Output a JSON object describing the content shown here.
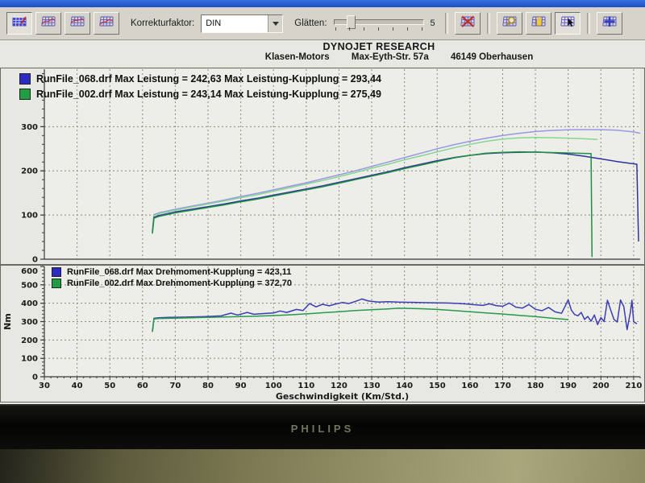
{
  "toolbar": {
    "korrekturfaktor_label": "Korrekturfaktor:",
    "korrekturfaktor_value": "DIN",
    "glaetten_label": "Glätten:",
    "glaetten_value": "5"
  },
  "header": {
    "title": "DYNOJET RESEARCH",
    "company": "Klasen-Motors",
    "street": "Max-Eyth-Str. 57a",
    "city": "46149 Oberhausen"
  },
  "legends": {
    "power": [
      {
        "color": "#2b2bc4",
        "label": "RunFile_068.drf Max Leistung = 242,63 Max Leistung-Kupplung = 293,44"
      },
      {
        "color": "#1f9e44",
        "label": "RunFile_002.drf Max Leistung = 243,14 Max Leistung-Kupplung = 275,49"
      }
    ],
    "torque": [
      {
        "color": "#2b2bc4",
        "label": "RunFile_068.drf Max Drehmoment-Kupplung = 423,11"
      },
      {
        "color": "#1f9e44",
        "label": "RunFile_002.drf Max Drehmoment-Kupplung = 372,70"
      }
    ]
  },
  "monitor": {
    "brand": "PHILIPS"
  },
  "chart_data": [
    {
      "type": "line",
      "name": "Leistung",
      "x_range": [
        30,
        212
      ],
      "y_range": [
        0,
        430
      ],
      "y_ticks": [
        0,
        100,
        200,
        300
      ],
      "y_minor_step": 20,
      "x_grid_step": 10,
      "show_x_labels": false,
      "series": [
        {
          "name": "RunFile_068 Leistung-Kupplung",
          "color": "#9a96e6",
          "points": [
            [
              63,
              64
            ],
            [
              63.5,
              101
            ],
            [
              65,
              105
            ],
            [
              70,
              113
            ],
            [
              75,
              120
            ],
            [
              80,
              127
            ],
            [
              85,
              134
            ],
            [
              90,
              142
            ],
            [
              95,
              149
            ],
            [
              100,
              157
            ],
            [
              105,
              165
            ],
            [
              110,
              173
            ],
            [
              115,
              182
            ],
            [
              120,
              191
            ],
            [
              125,
              200
            ],
            [
              130,
              210
            ],
            [
              135,
              220
            ],
            [
              140,
              230
            ],
            [
              145,
              240
            ],
            [
              150,
              250
            ],
            [
              155,
              259
            ],
            [
              160,
              267
            ],
            [
              165,
              274
            ],
            [
              170,
              280
            ],
            [
              175,
              285
            ],
            [
              180,
              289
            ],
            [
              185,
              291.5
            ],
            [
              190,
              293
            ],
            [
              195,
              293.4
            ],
            [
              200,
              293.2
            ],
            [
              205,
              292
            ],
            [
              210,
              288
            ],
            [
              212,
              285
            ]
          ]
        },
        {
          "name": "RunFile_002 Leistung-Kupplung",
          "color": "#84d694",
          "points": [
            [
              63,
              62
            ],
            [
              63.5,
              99
            ],
            [
              65,
              103
            ],
            [
              70,
              111
            ],
            [
              75,
              118
            ],
            [
              80,
              125
            ],
            [
              85,
              132
            ],
            [
              90,
              139
            ],
            [
              95,
              146
            ],
            [
              100,
              154
            ],
            [
              105,
              162
            ],
            [
              110,
              170
            ],
            [
              115,
              178
            ],
            [
              120,
              187
            ],
            [
              125,
              196
            ],
            [
              130,
              206
            ],
            [
              135,
              215
            ],
            [
              140,
              225
            ],
            [
              145,
              234
            ],
            [
              150,
              243
            ],
            [
              155,
              252
            ],
            [
              160,
              260
            ],
            [
              165,
              267
            ],
            [
              170,
              272
            ],
            [
              175,
              274.5
            ],
            [
              180,
              275.5
            ],
            [
              185,
              275
            ],
            [
              190,
              274
            ],
            [
              195,
              272.5
            ],
            [
              199,
              271
            ]
          ]
        },
        {
          "name": "RunFile_068 Leistung",
          "color": "#31319f",
          "points": [
            [
              63,
              60
            ],
            [
              63.5,
              95
            ],
            [
              65,
              99
            ],
            [
              70,
              107
            ],
            [
              75,
              113
            ],
            [
              80,
              119
            ],
            [
              85,
              125
            ],
            [
              90,
              132
            ],
            [
              95,
              138
            ],
            [
              100,
              145
            ],
            [
              105,
              152
            ],
            [
              110,
              159
            ],
            [
              115,
              166
            ],
            [
              120,
              174
            ],
            [
              125,
              182
            ],
            [
              130,
              190
            ],
            [
              135,
              198
            ],
            [
              140,
              207
            ],
            [
              145,
              215
            ],
            [
              150,
              223
            ],
            [
              155,
              230
            ],
            [
              160,
              235
            ],
            [
              165,
              239
            ],
            [
              170,
              241
            ],
            [
              175,
              242
            ],
            [
              180,
              242.6
            ],
            [
              185,
              241
            ],
            [
              190,
              238
            ],
            [
              195,
              233
            ],
            [
              200,
              227
            ],
            [
              205,
              221
            ],
            [
              210,
              216
            ],
            [
              211,
              215
            ],
            [
              211.5,
              40
            ]
          ]
        },
        {
          "name": "RunFile_002 Leistung",
          "color": "#1f8f45",
          "points": [
            [
              63,
              58
            ],
            [
              63.5,
              93
            ],
            [
              65,
              97
            ],
            [
              70,
              105
            ],
            [
              75,
              111
            ],
            [
              80,
              117
            ],
            [
              85,
              123
            ],
            [
              90,
              130
            ],
            [
              95,
              136
            ],
            [
              100,
              143
            ],
            [
              105,
              150
            ],
            [
              110,
              157
            ],
            [
              115,
              164
            ],
            [
              120,
              172
            ],
            [
              125,
              180
            ],
            [
              130,
              188
            ],
            [
              135,
              196
            ],
            [
              140,
              205
            ],
            [
              145,
              213
            ],
            [
              150,
              221
            ],
            [
              155,
              229
            ],
            [
              160,
              235
            ],
            [
              165,
              240
            ],
            [
              170,
              242
            ],
            [
              175,
              243.1
            ],
            [
              180,
              242.5
            ],
            [
              185,
              241.5
            ],
            [
              190,
              240.5
            ],
            [
              195,
              239.5
            ],
            [
              197,
              239
            ],
            [
              197.3,
              5
            ]
          ]
        }
      ]
    },
    {
      "type": "line",
      "name": "Drehmoment",
      "x_range": [
        30,
        212
      ],
      "y_range": [
        0,
        600
      ],
      "y_ticks": [
        0,
        100,
        200,
        300,
        400,
        500,
        600
      ],
      "y_minor_step": 20,
      "x_grid_step": 10,
      "show_x_labels": true,
      "x_ticks": [
        30,
        40,
        50,
        60,
        70,
        80,
        90,
        100,
        110,
        120,
        130,
        140,
        150,
        160,
        170,
        180,
        190,
        200,
        210
      ],
      "xlabel": "Geschwindigkeit (Km/Std.)",
      "ylabel": "Nm",
      "series": [
        {
          "name": "RunFile_068 Drehmoment-Kupplung",
          "color": "#3c3cb4",
          "points": [
            [
              63,
              248
            ],
            [
              63.5,
              318
            ],
            [
              65,
              321
            ],
            [
              68,
              323
            ],
            [
              72,
              324
            ],
            [
              76,
              326
            ],
            [
              80,
              328
            ],
            [
              84,
              331
            ],
            [
              87,
              346
            ],
            [
              89,
              336
            ],
            [
              92,
              350
            ],
            [
              94,
              340
            ],
            [
              97,
              344
            ],
            [
              100,
              347
            ],
            [
              102,
              358
            ],
            [
              104,
              350
            ],
            [
              107,
              366
            ],
            [
              109,
              360
            ],
            [
              111,
              398
            ],
            [
              113,
              380
            ],
            [
              115,
              394
            ],
            [
              117,
              386
            ],
            [
              119,
              396
            ],
            [
              121,
              404
            ],
            [
              123,
              398
            ],
            [
              125,
              410
            ],
            [
              127,
              423.1
            ],
            [
              129,
              412
            ],
            [
              132,
              406
            ],
            [
              135,
              408
            ],
            [
              138,
              406
            ],
            [
              141,
              405
            ],
            [
              144,
              404
            ],
            [
              147,
              403
            ],
            [
              150,
              402
            ],
            [
              153,
              401
            ],
            [
              156,
              399
            ],
            [
              159,
              396
            ],
            [
              162,
              391
            ],
            [
              164,
              388
            ],
            [
              166,
              397
            ],
            [
              168,
              387
            ],
            [
              170,
              383
            ],
            [
              172,
              401
            ],
            [
              174,
              379
            ],
            [
              176,
              373
            ],
            [
              178,
              393
            ],
            [
              180,
              367
            ],
            [
              182,
              359
            ],
            [
              184,
              377
            ],
            [
              186,
              353
            ],
            [
              188,
              345
            ],
            [
              189,
              380
            ],
            [
              190,
              418
            ],
            [
              191,
              362
            ],
            [
              192,
              338
            ],
            [
              193,
              332
            ],
            [
              194,
              350
            ],
            [
              195,
              312
            ],
            [
              196,
              328
            ],
            [
              197,
              302
            ],
            [
              198,
              336
            ],
            [
              199,
              284
            ],
            [
              200,
              322
            ],
            [
              201,
              300
            ],
            [
              202,
              416
            ],
            [
              203,
              362
            ],
            [
              204,
              312
            ],
            [
              205,
              298
            ],
            [
              206,
              418
            ],
            [
              207,
              382
            ],
            [
              208,
              256
            ],
            [
              209,
              350
            ],
            [
              209.5,
              416
            ],
            [
              210,
              300
            ],
            [
              211,
              288
            ]
          ]
        },
        {
          "name": "RunFile_002 Drehmoment-Kupplung",
          "color": "#26994f",
          "points": [
            [
              63,
              243
            ],
            [
              63.5,
              314
            ],
            [
              65,
              317
            ],
            [
              70,
              319
            ],
            [
              75,
              321
            ],
            [
              80,
              323
            ],
            [
              85,
              325
            ],
            [
              90,
              327
            ],
            [
              95,
              330
            ],
            [
              100,
              333
            ],
            [
              105,
              337
            ],
            [
              110,
              342
            ],
            [
              115,
              348
            ],
            [
              120,
              354
            ],
            [
              125,
              360
            ],
            [
              130,
              365
            ],
            [
              135,
              369
            ],
            [
              138,
              372.7
            ],
            [
              141,
              372
            ],
            [
              145,
              370
            ],
            [
              150,
              366
            ],
            [
              155,
              360
            ],
            [
              160,
              354
            ],
            [
              165,
              347
            ],
            [
              170,
              341
            ],
            [
              175,
              334
            ],
            [
              180,
              327
            ],
            [
              185,
              319
            ],
            [
              188,
              314
            ],
            [
              190,
              311
            ]
          ]
        }
      ]
    }
  ]
}
